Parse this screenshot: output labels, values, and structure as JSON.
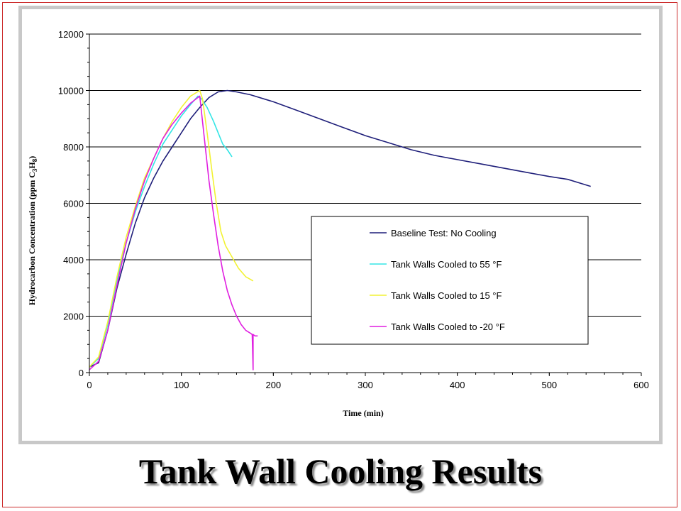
{
  "slide": {
    "title": "Tank Wall Cooling Results"
  },
  "chart_data": {
    "type": "line",
    "xlabel": "Time (min)",
    "ylabel": "Hydrocarbon Concentration (ppm C",
    "ylabel_sub1": "3",
    "ylabel_mid": "H",
    "ylabel_sub2": "8",
    "ylabel_end": ")",
    "xlim": [
      0,
      600
    ],
    "ylim": [
      0,
      12000
    ],
    "xticks": [
      "0",
      "100",
      "200",
      "300",
      "400",
      "500",
      "600"
    ],
    "yticks": [
      "0",
      "2000",
      "4000",
      "6000",
      "8000",
      "10000",
      "12000"
    ],
    "grid": "horizontal",
    "legend_position": "right-middle",
    "series": [
      {
        "name": "Baseline Test: No Cooling",
        "color": "#1f1f7a",
        "points": [
          [
            0,
            200
          ],
          [
            10,
            350
          ],
          [
            20,
            1500
          ],
          [
            30,
            3000
          ],
          [
            40,
            4200
          ],
          [
            50,
            5300
          ],
          [
            60,
            6200
          ],
          [
            70,
            6900
          ],
          [
            80,
            7500
          ],
          [
            90,
            8000
          ],
          [
            100,
            8500
          ],
          [
            110,
            9000
          ],
          [
            120,
            9400
          ],
          [
            130,
            9750
          ],
          [
            140,
            9950
          ],
          [
            150,
            10000
          ],
          [
            160,
            9950
          ],
          [
            175,
            9850
          ],
          [
            200,
            9600
          ],
          [
            225,
            9300
          ],
          [
            250,
            9000
          ],
          [
            275,
            8700
          ],
          [
            300,
            8400
          ],
          [
            325,
            8150
          ],
          [
            350,
            7900
          ],
          [
            375,
            7700
          ],
          [
            400,
            7550
          ],
          [
            425,
            7400
          ],
          [
            450,
            7250
          ],
          [
            475,
            7100
          ],
          [
            500,
            6950
          ],
          [
            520,
            6850
          ],
          [
            545,
            6600
          ]
        ]
      },
      {
        "name": "Tank Walls Cooled to 55 °F",
        "color": "#33e5e5",
        "points": [
          [
            0,
            200
          ],
          [
            10,
            500
          ],
          [
            20,
            1700
          ],
          [
            30,
            3300
          ],
          [
            40,
            4600
          ],
          [
            50,
            5700
          ],
          [
            60,
            6600
          ],
          [
            70,
            7400
          ],
          [
            80,
            8100
          ],
          [
            90,
            8600
          ],
          [
            100,
            9100
          ],
          [
            110,
            9500
          ],
          [
            118,
            9800
          ],
          [
            122,
            9700
          ],
          [
            128,
            9400
          ],
          [
            135,
            8900
          ],
          [
            140,
            8500
          ],
          [
            145,
            8100
          ],
          [
            150,
            7900
          ],
          [
            155,
            7650
          ]
        ]
      },
      {
        "name": "Tank Walls Cooled to 15 °F",
        "color": "#f2f233",
        "points": [
          [
            0,
            200
          ],
          [
            10,
            550
          ],
          [
            20,
            1800
          ],
          [
            30,
            3400
          ],
          [
            40,
            4800
          ],
          [
            50,
            5900
          ],
          [
            60,
            6900
          ],
          [
            70,
            7600
          ],
          [
            80,
            8300
          ],
          [
            90,
            8900
          ],
          [
            100,
            9400
          ],
          [
            110,
            9800
          ],
          [
            120,
            10000
          ],
          [
            123,
            9700
          ],
          [
            128,
            8500
          ],
          [
            133,
            7200
          ],
          [
            138,
            6000
          ],
          [
            143,
            5000
          ],
          [
            148,
            4500
          ],
          [
            155,
            4100
          ],
          [
            162,
            3700
          ],
          [
            170,
            3400
          ],
          [
            178,
            3250
          ]
        ]
      },
      {
        "name": "Tank Walls Cooled to -20 °F",
        "color": "#e01fe0",
        "points": [
          [
            0,
            100
          ],
          [
            10,
            400
          ],
          [
            20,
            1500
          ],
          [
            30,
            3100
          ],
          [
            40,
            4600
          ],
          [
            50,
            5800
          ],
          [
            60,
            6800
          ],
          [
            70,
            7600
          ],
          [
            80,
            8300
          ],
          [
            90,
            8800
          ],
          [
            100,
            9200
          ],
          [
            110,
            9550
          ],
          [
            120,
            9800
          ],
          [
            122,
            9200
          ],
          [
            126,
            8000
          ],
          [
            130,
            6800
          ],
          [
            135,
            5600
          ],
          [
            140,
            4500
          ],
          [
            145,
            3600
          ],
          [
            150,
            2900
          ],
          [
            155,
            2400
          ],
          [
            160,
            2000
          ],
          [
            165,
            1700
          ],
          [
            170,
            1500
          ],
          [
            175,
            1400
          ],
          [
            177,
            1350
          ],
          [
            178,
            100
          ],
          [
            178,
            1350
          ],
          [
            180,
            1300
          ],
          [
            183,
            1300
          ]
        ]
      }
    ]
  }
}
